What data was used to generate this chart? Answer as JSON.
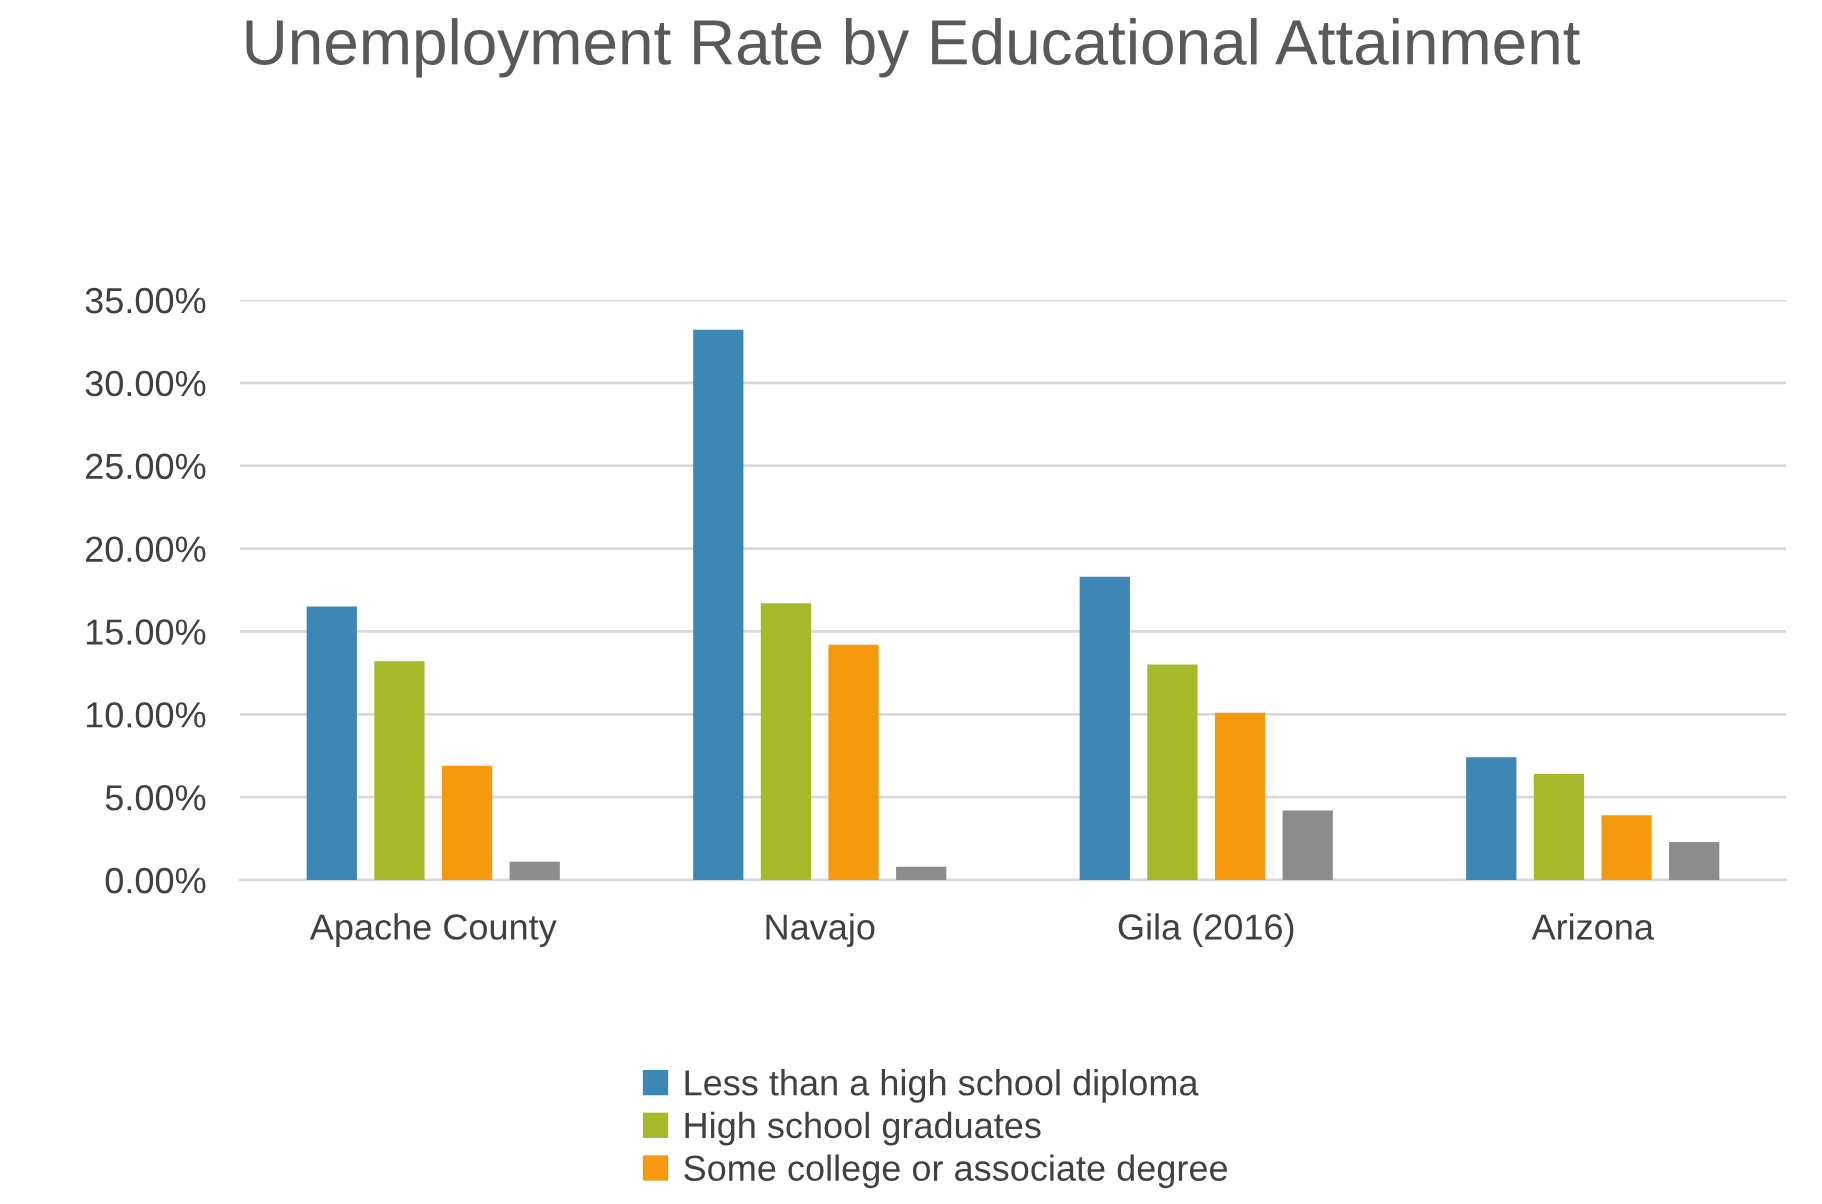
{
  "chart_data": {
    "type": "bar",
    "title": "Unemployment Rate by Educational Attainment",
    "categories": [
      "Apache County",
      "Navajo",
      "Gila (2016)",
      "Arizona"
    ],
    "series": [
      {
        "name": "Less than a high school diploma",
        "color": "#3e87b5",
        "values": [
          16.5,
          33.2,
          18.3,
          7.4
        ]
      },
      {
        "name": "High school graduates",
        "color": "#a5b92a",
        "values": [
          13.2,
          16.7,
          13.0,
          6.4
        ]
      },
      {
        "name": "Some college or associate degree",
        "color": "#f59a0f",
        "values": [
          6.9,
          14.2,
          10.1,
          3.9
        ]
      },
      {
        "color": "#8c8c8c",
        "values": [
          1.1,
          0.8,
          4.2,
          2.3
        ]
      }
    ],
    "ylim": [
      0,
      35
    ],
    "yticks": [
      {
        "value": 0,
        "label": "0.00%"
      },
      {
        "value": 5,
        "label": "5.00%"
      },
      {
        "value": 10,
        "label": "10.00%"
      },
      {
        "value": 15,
        "label": "15.00%"
      },
      {
        "value": 20,
        "label": "20.00%"
      },
      {
        "value": 25,
        "label": "25.00%"
      },
      {
        "value": 30,
        "label": "30.00%"
      },
      {
        "value": 35,
        "label": "35.00%"
      }
    ],
    "grid": "y",
    "legend": "bottom"
  }
}
